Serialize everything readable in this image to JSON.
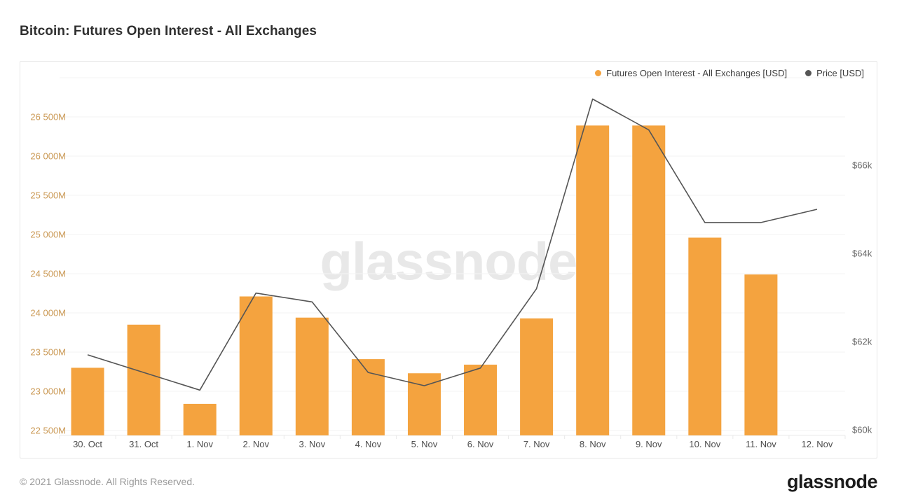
{
  "header": {
    "title": "Bitcoin: Futures Open Interest - All Exchanges"
  },
  "watermark": {
    "text": "glassnode"
  },
  "footer": {
    "copyright": "© 2021 Glassnode. All Rights Reserved.",
    "logo_text": "glassnode"
  },
  "colors": {
    "bar_orange": "#F4A33F",
    "price_line_gray": "#555555",
    "left_axis_labels": "#CB9A56",
    "right_axis_labels": "#6B6B6B",
    "x_axis_labels": "#4C4C4C",
    "gridline": "#F3F3F3",
    "baseline": "#E9E9E9"
  },
  "chart_data": {
    "type": "bar",
    "title": "Bitcoin: Futures Open Interest - All Exchanges",
    "legend_position": "top-right",
    "grid": true,
    "categories": [
      "30. Oct",
      "31. Oct",
      "1. Nov",
      "2. Nov",
      "3. Nov",
      "4. Nov",
      "5. Nov",
      "6. Nov",
      "7. Nov",
      "8. Nov",
      "9. Nov",
      "10. Nov",
      "11. Nov",
      "12. Nov"
    ],
    "series": [
      {
        "name": "Futures Open Interest - All Exchanges [USD]",
        "type": "bar",
        "axis": "left",
        "unit": "M USD",
        "color": "#F4A33F",
        "values": [
          23300,
          23850,
          22840,
          24210,
          23940,
          23410,
          23230,
          23340,
          23930,
          26390,
          26390,
          24960,
          24490,
          null
        ]
      },
      {
        "name": "Price [USD]",
        "type": "line",
        "axis": "right",
        "unit": "k USD",
        "color": "#555555",
        "values": [
          61.7,
          61.3,
          60.9,
          63.1,
          62.9,
          61.3,
          61.0,
          61.4,
          63.2,
          67.5,
          66.8,
          64.7,
          64.7,
          65.0
        ]
      }
    ],
    "left_axis": {
      "title": "",
      "unit": "M",
      "min": 22440,
      "max": 26930,
      "gridline_values": [
        22500,
        23000,
        23500,
        24000,
        24500,
        25000,
        25500,
        26000,
        26500,
        27000
      ],
      "ticks": [
        {
          "value": 22500,
          "label": "22 500M"
        },
        {
          "value": 23000,
          "label": "23 000M"
        },
        {
          "value": 23500,
          "label": "23 500M"
        },
        {
          "value": 24000,
          "label": "24 000M"
        },
        {
          "value": 24500,
          "label": "24 500M"
        },
        {
          "value": 25000,
          "label": "25 000M"
        },
        {
          "value": 25500,
          "label": "25 500M"
        },
        {
          "value": 26000,
          "label": "26 000M"
        },
        {
          "value": 26500,
          "label": "26 500M"
        }
      ]
    },
    "right_axis": {
      "title": "",
      "unit": "$k",
      "min": 59.9,
      "max": 67.8,
      "ticks": [
        {
          "value": 60,
          "label": "$60k"
        },
        {
          "value": 62,
          "label": "$62k"
        },
        {
          "value": 64,
          "label": "$64k"
        },
        {
          "value": 66,
          "label": "$66k"
        }
      ]
    }
  }
}
